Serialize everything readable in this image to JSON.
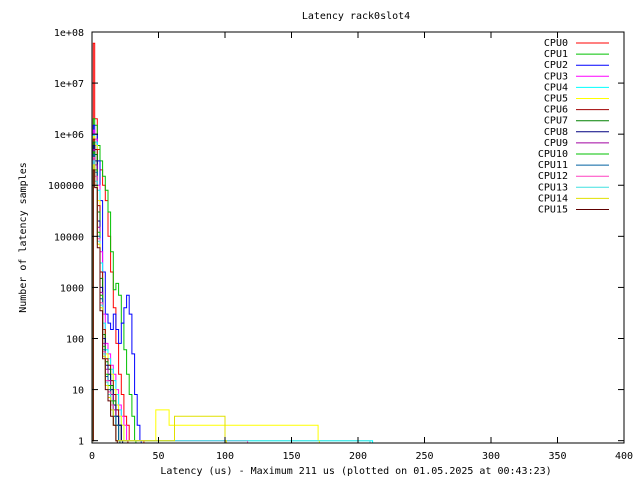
{
  "chart_data": {
    "type": "line",
    "title": "Latency rack0slot4",
    "xlabel": "Latency (us) - Maximum 211 us (plotted on 01.05.2025 at 00:43:23)",
    "ylabel": "Number of latency samples",
    "xlim": [
      0,
      400
    ],
    "ylim": [
      0.9,
      100000000
    ],
    "yscale": "log",
    "grid": false,
    "legend_position": "top-right",
    "x_ticks": [
      {
        "value": 0,
        "label": "0"
      },
      {
        "value": 50,
        "label": "50"
      },
      {
        "value": 100,
        "label": "100"
      },
      {
        "value": 150,
        "label": "150"
      },
      {
        "value": 200,
        "label": "200"
      },
      {
        "value": 250,
        "label": "250"
      },
      {
        "value": 300,
        "label": "300"
      },
      {
        "value": 350,
        "label": "350"
      },
      {
        "value": 400,
        "label": "400"
      }
    ],
    "y_ticks": [
      {
        "value": 1,
        "label": "1"
      },
      {
        "value": 10,
        "label": "10"
      },
      {
        "value": 100,
        "label": "100"
      },
      {
        "value": 1000,
        "label": "1000"
      },
      {
        "value": 10000,
        "label": "10000"
      },
      {
        "value": 100000,
        "label": "100000"
      },
      {
        "value": 1000000,
        "label": "1e+06"
      },
      {
        "value": 10000000,
        "label": "1e+07"
      },
      {
        "value": 100000000,
        "label": "1e+08"
      }
    ],
    "series": [
      {
        "name": "CPU0",
        "color": "#ff0000",
        "points": [
          [
            0,
            1
          ],
          [
            1,
            60000000
          ],
          [
            2,
            2000000
          ],
          [
            4,
            500000
          ],
          [
            6,
            200000
          ],
          [
            8,
            100000
          ],
          [
            10,
            50000
          ],
          [
            12,
            10000
          ],
          [
            14,
            2000
          ],
          [
            16,
            400
          ],
          [
            18,
            80
          ],
          [
            20,
            20
          ],
          [
            22,
            8
          ],
          [
            24,
            3
          ],
          [
            26,
            2
          ],
          [
            28,
            1
          ],
          [
            30,
            1
          ],
          [
            38,
            1
          ]
        ]
      },
      {
        "name": "CPU1",
        "color": "#00c000",
        "points": [
          [
            0,
            1
          ],
          [
            1,
            2000000
          ],
          [
            2,
            1500000
          ],
          [
            4,
            600000
          ],
          [
            6,
            300000
          ],
          [
            8,
            150000
          ],
          [
            10,
            80000
          ],
          [
            12,
            30000
          ],
          [
            14,
            5000
          ],
          [
            16,
            900
          ],
          [
            18,
            1200
          ],
          [
            20,
            700
          ],
          [
            22,
            200
          ],
          [
            24,
            60
          ],
          [
            26,
            20
          ],
          [
            28,
            8
          ],
          [
            30,
            3
          ],
          [
            32,
            1
          ]
        ]
      },
      {
        "name": "CPU2",
        "color": "#0000ff",
        "points": [
          [
            0,
            1
          ],
          [
            1,
            1500000
          ],
          [
            2,
            1000000
          ],
          [
            4,
            300000
          ],
          [
            6,
            50000
          ],
          [
            8,
            2000
          ],
          [
            10,
            300
          ],
          [
            12,
            200
          ],
          [
            14,
            150
          ],
          [
            16,
            300
          ],
          [
            18,
            150
          ],
          [
            20,
            80
          ],
          [
            22,
            200
          ],
          [
            24,
            400
          ],
          [
            26,
            700
          ],
          [
            28,
            300
          ],
          [
            30,
            50
          ],
          [
            32,
            8
          ],
          [
            34,
            2
          ],
          [
            36,
            1
          ]
        ]
      },
      {
        "name": "CPU3",
        "color": "#ff00ff",
        "points": [
          [
            0,
            1
          ],
          [
            1,
            1200000
          ],
          [
            2,
            800000
          ],
          [
            4,
            100000
          ],
          [
            6,
            5000
          ],
          [
            8,
            300
          ],
          [
            10,
            80
          ],
          [
            12,
            50
          ],
          [
            14,
            30
          ],
          [
            16,
            20
          ],
          [
            18,
            10
          ],
          [
            20,
            5
          ],
          [
            22,
            3
          ],
          [
            24,
            2
          ],
          [
            26,
            1
          ]
        ]
      },
      {
        "name": "CPU4",
        "color": "#00ffff",
        "points": [
          [
            0,
            1
          ],
          [
            1,
            1000000
          ],
          [
            2,
            700000
          ],
          [
            4,
            80000
          ],
          [
            6,
            3000
          ],
          [
            8,
            200
          ],
          [
            10,
            60
          ],
          [
            12,
            40
          ],
          [
            14,
            25
          ],
          [
            16,
            15
          ],
          [
            18,
            8
          ],
          [
            20,
            4
          ],
          [
            22,
            2
          ],
          [
            24,
            1
          ],
          [
            210,
            1
          ]
        ]
      },
      {
        "name": "CPU5",
        "color": "#ffff00",
        "points": [
          [
            0,
            1
          ],
          [
            1,
            900000
          ],
          [
            2,
            600000
          ],
          [
            4,
            50000
          ],
          [
            6,
            2000
          ],
          [
            8,
            150
          ],
          [
            10,
            50
          ],
          [
            12,
            30
          ],
          [
            14,
            20
          ],
          [
            16,
            10
          ],
          [
            18,
            5
          ],
          [
            20,
            3
          ],
          [
            22,
            2
          ],
          [
            24,
            1
          ],
          [
            48,
            4
          ],
          [
            58,
            2
          ],
          [
            170,
            1
          ]
        ]
      },
      {
        "name": "CPU6",
        "color": "#a00000",
        "points": [
          [
            0,
            1
          ],
          [
            1,
            800000
          ],
          [
            2,
            500000
          ],
          [
            4,
            40000
          ],
          [
            6,
            2000
          ],
          [
            8,
            150
          ],
          [
            10,
            40
          ],
          [
            12,
            30
          ],
          [
            14,
            15
          ],
          [
            16,
            8
          ],
          [
            18,
            4
          ],
          [
            20,
            2
          ],
          [
            22,
            1
          ],
          [
            26,
            1
          ]
        ]
      },
      {
        "name": "CPU7",
        "color": "#008000",
        "points": [
          [
            0,
            1
          ],
          [
            1,
            700000
          ],
          [
            2,
            400000
          ],
          [
            4,
            30000
          ],
          [
            6,
            1500
          ],
          [
            8,
            120
          ],
          [
            10,
            35
          ],
          [
            12,
            25
          ],
          [
            14,
            12
          ],
          [
            16,
            6
          ],
          [
            18,
            3
          ],
          [
            20,
            2
          ],
          [
            22,
            1
          ]
        ]
      },
      {
        "name": "CPU8",
        "color": "#000080",
        "points": [
          [
            0,
            1
          ],
          [
            1,
            600000
          ],
          [
            2,
            300000
          ],
          [
            4,
            20000
          ],
          [
            6,
            1000
          ],
          [
            8,
            100
          ],
          [
            10,
            30
          ],
          [
            12,
            20
          ],
          [
            14,
            10
          ],
          [
            16,
            5
          ],
          [
            18,
            3
          ],
          [
            20,
            2
          ],
          [
            22,
            1
          ]
        ]
      },
      {
        "name": "CPU9",
        "color": "#a000a0",
        "points": [
          [
            0,
            1
          ],
          [
            1,
            500000
          ],
          [
            2,
            250000
          ],
          [
            4,
            15000
          ],
          [
            6,
            800
          ],
          [
            8,
            80
          ],
          [
            10,
            25
          ],
          [
            12,
            15
          ],
          [
            14,
            8
          ],
          [
            16,
            4
          ],
          [
            18,
            2
          ],
          [
            20,
            1
          ]
        ]
      },
      {
        "name": "CPU10",
        "color": "#00c000",
        "points": [
          [
            0,
            1
          ],
          [
            1,
            450000
          ],
          [
            2,
            200000
          ],
          [
            4,
            12000
          ],
          [
            6,
            700
          ],
          [
            8,
            70
          ],
          [
            10,
            20
          ],
          [
            12,
            12
          ],
          [
            14,
            6
          ],
          [
            16,
            3
          ],
          [
            18,
            2
          ],
          [
            20,
            1
          ]
        ]
      },
      {
        "name": "CPU11",
        "color": "#0060a0",
        "points": [
          [
            0,
            1
          ],
          [
            1,
            400000
          ],
          [
            2,
            180000
          ],
          [
            4,
            10000
          ],
          [
            6,
            600
          ],
          [
            8,
            60
          ],
          [
            10,
            18
          ],
          [
            12,
            10
          ],
          [
            14,
            5
          ],
          [
            16,
            3
          ],
          [
            18,
            2
          ],
          [
            20,
            1
          ]
        ]
      },
      {
        "name": "CPU12",
        "color": "#ff40c0",
        "points": [
          [
            0,
            1
          ],
          [
            1,
            350000
          ],
          [
            2,
            150000
          ],
          [
            4,
            9000
          ],
          [
            6,
            500
          ],
          [
            8,
            55
          ],
          [
            10,
            15
          ],
          [
            12,
            9
          ],
          [
            14,
            5
          ],
          [
            16,
            2
          ],
          [
            18,
            1
          ],
          [
            116,
            1
          ]
        ]
      },
      {
        "name": "CPU13",
        "color": "#40e0e0",
        "points": [
          [
            0,
            1
          ],
          [
            1,
            300000
          ],
          [
            2,
            120000
          ],
          [
            4,
            8000
          ],
          [
            6,
            450
          ],
          [
            8,
            50
          ],
          [
            10,
            14
          ],
          [
            12,
            8
          ],
          [
            14,
            4
          ],
          [
            16,
            2
          ],
          [
            18,
            1
          ],
          [
            208,
            1
          ]
        ]
      },
      {
        "name": "CPU14",
        "color": "#e0e000",
        "points": [
          [
            0,
            1
          ],
          [
            1,
            250000
          ],
          [
            2,
            100000
          ],
          [
            4,
            7000
          ],
          [
            6,
            400
          ],
          [
            8,
            45
          ],
          [
            10,
            12
          ],
          [
            12,
            7
          ],
          [
            14,
            4
          ],
          [
            16,
            2
          ],
          [
            18,
            1
          ],
          [
            62,
            3
          ],
          [
            100,
            1
          ]
        ]
      },
      {
        "name": "CPU15",
        "color": "#600000",
        "points": [
          [
            0,
            1
          ],
          [
            1,
            200000
          ],
          [
            2,
            90000
          ],
          [
            4,
            6000
          ],
          [
            6,
            350
          ],
          [
            8,
            40
          ],
          [
            10,
            10
          ],
          [
            12,
            6
          ],
          [
            14,
            3
          ],
          [
            16,
            2
          ],
          [
            18,
            1
          ]
        ]
      }
    ]
  }
}
